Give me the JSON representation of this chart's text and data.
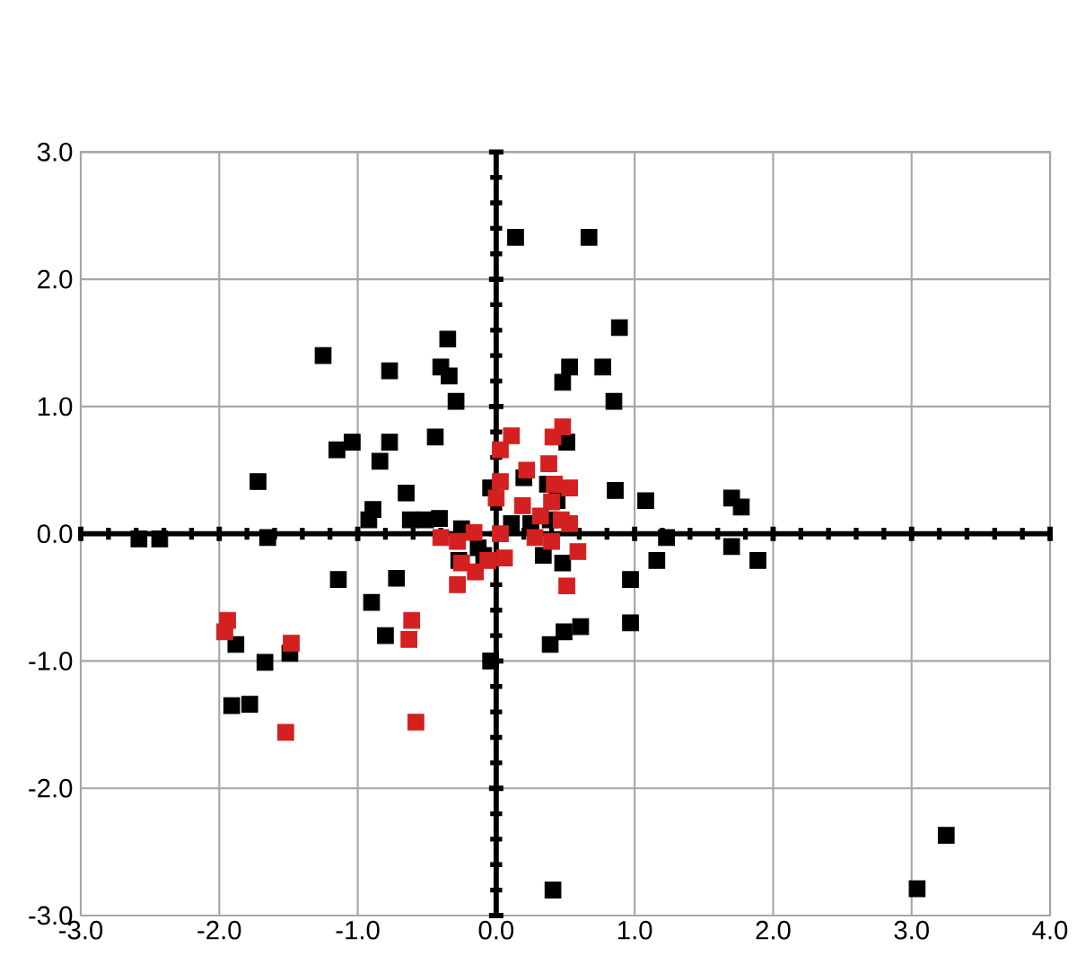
{
  "chart_data": {
    "type": "scatter",
    "xlim": [
      -3,
      4
    ],
    "ylim": [
      -3,
      3
    ],
    "xticks": [
      {
        "value": -3,
        "label": "-3.0"
      },
      {
        "value": -2,
        "label": "-2.0"
      },
      {
        "value": -1,
        "label": "-1.0"
      },
      {
        "value": 0,
        "label": "0.0"
      },
      {
        "value": 1,
        "label": "1.0"
      },
      {
        "value": 2,
        "label": "2.0"
      },
      {
        "value": 3,
        "label": "3.0"
      },
      {
        "value": 4,
        "label": "4.0"
      }
    ],
    "yticks": [
      {
        "value": -3,
        "label": "-3.0"
      },
      {
        "value": -2,
        "label": "-2.0"
      },
      {
        "value": -1,
        "label": "-1.0"
      },
      {
        "value": 0,
        "label": "0.0"
      },
      {
        "value": 1,
        "label": "1.0"
      },
      {
        "value": 2,
        "label": "2.0"
      },
      {
        "value": 3,
        "label": "3.0"
      }
    ],
    "grid": true,
    "marker": "square",
    "series": [
      {
        "color": "#000000",
        "x": [
          0.14,
          0.67,
          0.89,
          -1.25,
          -0.35,
          -0.77,
          -0.4,
          -0.34,
          -0.29,
          0.53,
          0.77,
          0.48,
          0.85,
          -1.15,
          -1.04,
          -0.77,
          -0.84,
          -0.44,
          -1.72,
          -0.65,
          -0.89,
          -0.92,
          -0.62,
          -0.51,
          -0.41,
          -2.58,
          -2.43,
          -1.65,
          -1.14,
          -0.9,
          -0.72,
          -0.8,
          -1.88,
          -1.67,
          -1.49,
          -1.91,
          -1.78,
          -0.04,
          0.39,
          0.49,
          0.61,
          0.97,
          0.97,
          1.16,
          1.23,
          1.08,
          1.7,
          1.77,
          0.86,
          1.7,
          1.89,
          0.41,
          3.04,
          3.25,
          0.44,
          0.37,
          0.2,
          -0.04,
          0.11,
          0.25,
          0.39,
          0.34,
          0.48,
          -0.25,
          -0.13,
          -0.09,
          -0.27,
          0.51
        ],
        "values": [
          2.33,
          2.33,
          1.62,
          1.4,
          1.53,
          1.28,
          1.31,
          1.24,
          1.04,
          1.31,
          1.31,
          1.19,
          1.04,
          0.66,
          0.72,
          0.72,
          0.57,
          0.76,
          0.41,
          0.32,
          0.19,
          0.11,
          0.11,
          0.11,
          0.12,
          -0.04,
          -0.04,
          -0.03,
          -0.36,
          -0.54,
          -0.35,
          -0.8,
          -0.87,
          -1.01,
          -0.94,
          -1.35,
          -1.34,
          -1.0,
          -0.87,
          -0.77,
          -0.73,
          -0.7,
          -0.36,
          -0.21,
          -0.03,
          0.26,
          0.28,
          0.21,
          0.34,
          -0.1,
          -0.21,
          -2.8,
          -2.79,
          -2.37,
          0.26,
          0.39,
          0.44,
          0.36,
          0.08,
          0.08,
          0.11,
          -0.17,
          -0.23,
          0.04,
          -0.11,
          -0.17,
          -0.21,
          0.72
        ]
      },
      {
        "color": "#d42020",
        "x": [
          -1.94,
          -1.96,
          -1.48,
          -1.52,
          -0.61,
          -0.63,
          -0.58,
          0.11,
          0.03,
          0.48,
          0.41,
          0.22,
          0.03,
          0.53,
          0.42,
          0.4,
          0.19,
          0.53,
          0.28,
          0.4,
          0.59,
          0.51,
          0.03,
          0.06,
          -0.16,
          -0.28,
          -0.25,
          -0.28,
          -0.15,
          -0.4,
          -0.06,
          0.32,
          0.47,
          0.0,
          0.38
        ],
        "values": [
          -0.68,
          -0.77,
          -0.86,
          -1.56,
          -0.68,
          -0.83,
          -1.48,
          0.77,
          0.66,
          0.84,
          0.76,
          0.5,
          0.41,
          0.36,
          0.39,
          0.25,
          0.22,
          0.08,
          -0.03,
          -0.06,
          -0.14,
          -0.41,
          0.0,
          -0.19,
          0.01,
          -0.06,
          -0.23,
          -0.4,
          -0.3,
          -0.03,
          -0.21,
          0.14,
          0.11,
          0.28,
          0.55
        ]
      }
    ]
  }
}
